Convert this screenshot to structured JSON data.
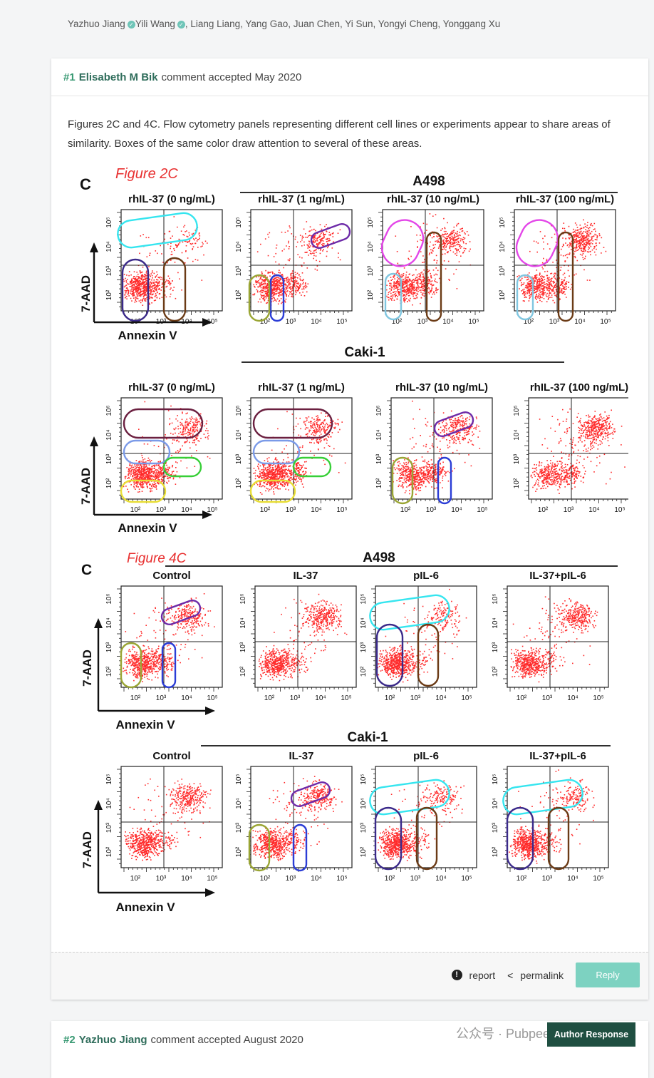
{
  "authors": {
    "first": "Yazhuo Jiang",
    "second": "Yili Wang",
    "rest": ", Liang Liang, Yang Gao, Juan Chen, Yi Sun, Yongyi Cheng, Yonggang Xu"
  },
  "comment1": {
    "number": "#1",
    "user": "Elisabeth M Bik",
    "accepted": "comment accepted May 2020",
    "body": "Figures 2C and 4C. Flow cytometry panels representing different cell lines or experiments appear to share areas of similarity. Boxes of the same color draw attention to several of these areas.",
    "figure": {
      "fig2_label": "Figure 2C",
      "fig4_label": "Figure 4C",
      "panel_letter": "C",
      "cell_a498": "A498",
      "cell_caki": "Caki-1",
      "fig2_titles": [
        "rhIL-37 (0 ng/mL)",
        "rhIL-37 (1 ng/mL)",
        "rhIL-37 (10 ng/mL)",
        "rhIL-37 (100 ng/mL)"
      ],
      "fig4_titles": [
        "Control",
        "IL-37",
        "pIL-6",
        "IL-37+pIL-6"
      ],
      "ylabel": "7-AAD",
      "xlabel": "Annexin V"
    },
    "actions": {
      "report": "report",
      "permalink": "permalink",
      "reply": "Reply"
    }
  },
  "comment2": {
    "number": "#2",
    "user": "Yazhuo Jiang",
    "accepted": "comment accepted August 2020",
    "badge": "Author Response"
  },
  "watermark": "公众号 · Pubpeer",
  "colors": {
    "accent": "#3a9a74",
    "reply_button": "#7dd2c1",
    "author_badge": "#1f4f41",
    "dots": "#ff2a2a"
  }
}
